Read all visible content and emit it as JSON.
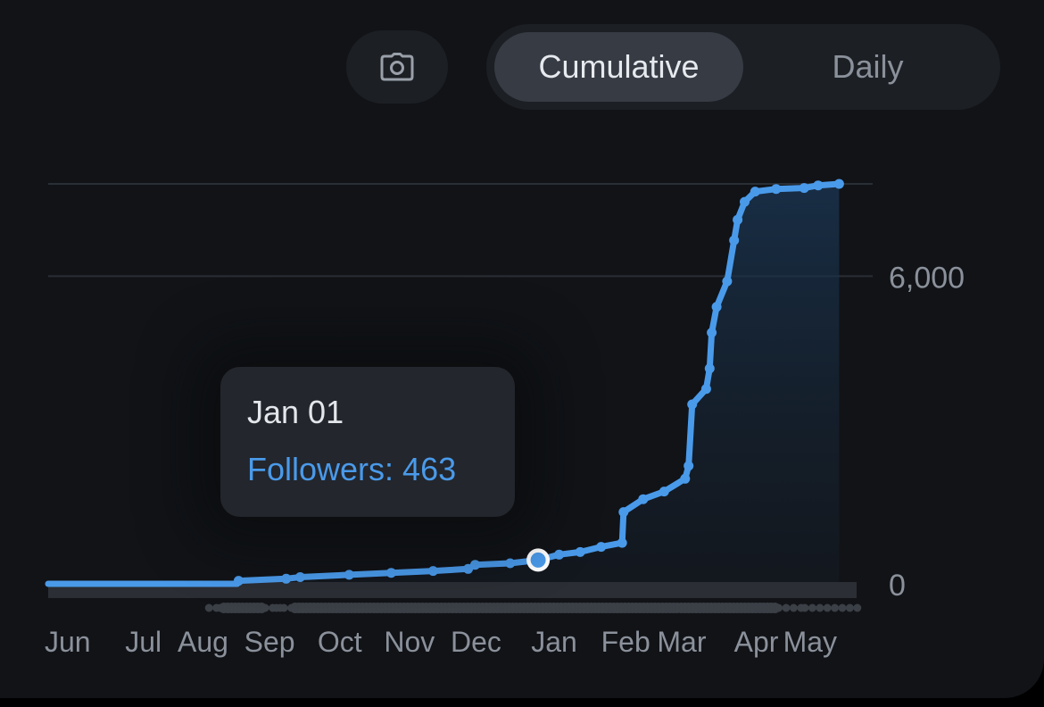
{
  "toolbar": {
    "camera_icon": "camera-icon",
    "tabs": [
      {
        "label": "Cumulative",
        "active": true
      },
      {
        "label": "Daily",
        "active": false
      }
    ]
  },
  "tooltip": {
    "date": "Jan 01",
    "label": "Followers",
    "value": 463,
    "text": "Followers: 463"
  },
  "colors": {
    "background": "#111317",
    "line": "#4a9aea",
    "gridline": "#2a2e35",
    "tick_text": "#8b919b",
    "tooltip_bg": "#23262c"
  },
  "chart_data": {
    "type": "area",
    "title": "",
    "xlabel": "",
    "ylabel": "",
    "y_axis_position": "right",
    "ylim": [
      0,
      7800
    ],
    "y_ticks": [
      {
        "value": 0,
        "label": "0"
      },
      {
        "value": 6000,
        "label": "6,000"
      }
    ],
    "x_ticks": [
      "Jun",
      "Jul",
      "Aug",
      "Sep",
      "Oct",
      "Nov",
      "Dec",
      "Jan",
      "Feb",
      "Mar",
      "Apr",
      "May"
    ],
    "x_tick_positions": [
      0,
      1.15,
      1.9,
      2.85,
      3.9,
      4.85,
      5.8,
      6.95,
      7.95,
      8.75,
      9.85,
      10.55
    ],
    "x_range": [
      0,
      11.55
    ],
    "grid": true,
    "highlight": {
      "x": 7.0,
      "y": 463,
      "label": "Jan 01"
    },
    "series": [
      {
        "name": "Followers",
        "points": [
          [
            0,
            0
          ],
          [
            2.7,
            0
          ],
          [
            2.72,
            60
          ],
          [
            3.4,
            100
          ],
          [
            3.6,
            130
          ],
          [
            4.3,
            175
          ],
          [
            4.9,
            215
          ],
          [
            5.5,
            250
          ],
          [
            6.0,
            290
          ],
          [
            6.1,
            370
          ],
          [
            6.6,
            400
          ],
          [
            7.0,
            463
          ],
          [
            7.3,
            570
          ],
          [
            7.6,
            620
          ],
          [
            7.9,
            720
          ],
          [
            8.2,
            800
          ],
          [
            8.22,
            1400
          ],
          [
            8.5,
            1650
          ],
          [
            8.8,
            1800
          ],
          [
            9.1,
            2050
          ],
          [
            9.15,
            2300
          ],
          [
            9.2,
            3500
          ],
          [
            9.4,
            3800
          ],
          [
            9.45,
            4200
          ],
          [
            9.48,
            4900
          ],
          [
            9.55,
            5400
          ],
          [
            9.7,
            5900
          ],
          [
            9.8,
            6700
          ],
          [
            9.85,
            7100
          ],
          [
            9.95,
            7450
          ],
          [
            10.1,
            7650
          ],
          [
            10.4,
            7700
          ],
          [
            10.8,
            7720
          ],
          [
            11.0,
            7770
          ],
          [
            11.3,
            7800
          ]
        ]
      }
    ]
  }
}
